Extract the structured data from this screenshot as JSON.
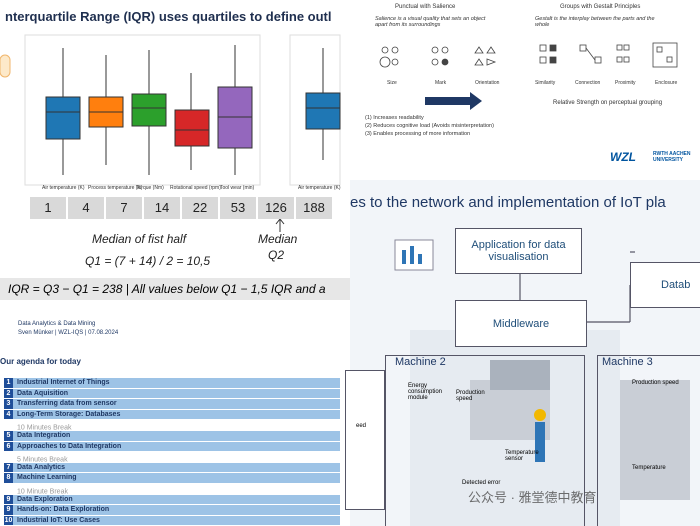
{
  "iqr_slide": {
    "title": "nterquartile Range (IQR) uses quartiles to define outl",
    "box_captions": [
      "Air temperature (K)",
      "Process temperature (K)",
      "Torque (Nm)",
      "Rotational speed (rpm)",
      "Tool wear (min)",
      "Air temperature (K)"
    ],
    "numbers": [
      "1",
      "4",
      "7",
      "14",
      "22",
      "53",
      "126",
      "188"
    ],
    "median_first_half": "Median of fist half",
    "q1_formula": "Q1 = (7 + 14) / 2 = 10,5",
    "median": "Median",
    "q2": "Q2",
    "iqr_formula": "IQR = Q3 − Q1 = 238 | All values below Q1 − 1,5 IQR and a"
  },
  "gestalt_slide": {
    "left_heading": "Punctual with Salience",
    "left_text": "Salience is a visual quality that sets an object apart from its surroundings",
    "left_labels": [
      "Size",
      "Mark",
      "Orientation"
    ],
    "right_heading": "Groups with Gestalt Principles",
    "right_text": "Gestalt is the interplay between the parts and the whole",
    "right_labels": [
      "Similarity",
      "Connection",
      "Proximity",
      "Enclosure"
    ],
    "strength": "Relative Strength on perceptual grouping",
    "benefits": [
      "(1) Increases readability",
      "(2) Reduces cognitive load (Avoids misinterpretation)",
      "(3) Enables processing of more information"
    ],
    "logo": "WZL",
    "university": "RWTH AACHEN UNIVERSITY"
  },
  "agenda_slide": {
    "course": "Data Analytics & Data Mining",
    "author": "Sven Münker | WZL-IQS | 07.08.2024",
    "heading": "Our agenda for today",
    "rows": [
      {
        "number": "1",
        "item": "Industrial Internet of Things"
      },
      {
        "number": "2",
        "item": "Data Aquisition"
      },
      {
        "number": "3",
        "item": "Transferring data from sensor"
      },
      {
        "number": "4",
        "item": "Long-Term Storage: Databases"
      },
      {
        "item": "10 Minutes Break"
      },
      {
        "number": "5",
        "item": "Data Integration"
      },
      {
        "number": "6",
        "item": "Approaches to Data Integration"
      },
      {
        "item": "5 Minutes Break"
      },
      {
        "number": "7",
        "item": "Data Analytics"
      },
      {
        "number": "8",
        "item": "Machine Learning"
      },
      {
        "item": "10 Minute Break"
      },
      {
        "number": "9",
        "item": "Data Exploration"
      },
      {
        "number": "9",
        "item": "Hands-on: Data Exploration"
      },
      {
        "number": "10",
        "item": "Industrial IoT: Use Cases"
      }
    ]
  },
  "iot_slide": {
    "title": "es to the network and implementation of IoT pla",
    "app_box": "Application for data visualisation",
    "database": "Datab",
    "middleware": "Middleware",
    "machine_2": "Machine 2",
    "machine_3": "Machine 3",
    "left_box": "eed",
    "labels": [
      "Energy consumption module",
      "Production speed",
      "Temperature sensor",
      "Detected error",
      "Production speed",
      "Temperature"
    ]
  },
  "watermark": "公众号 · 雅堂德中教育"
}
